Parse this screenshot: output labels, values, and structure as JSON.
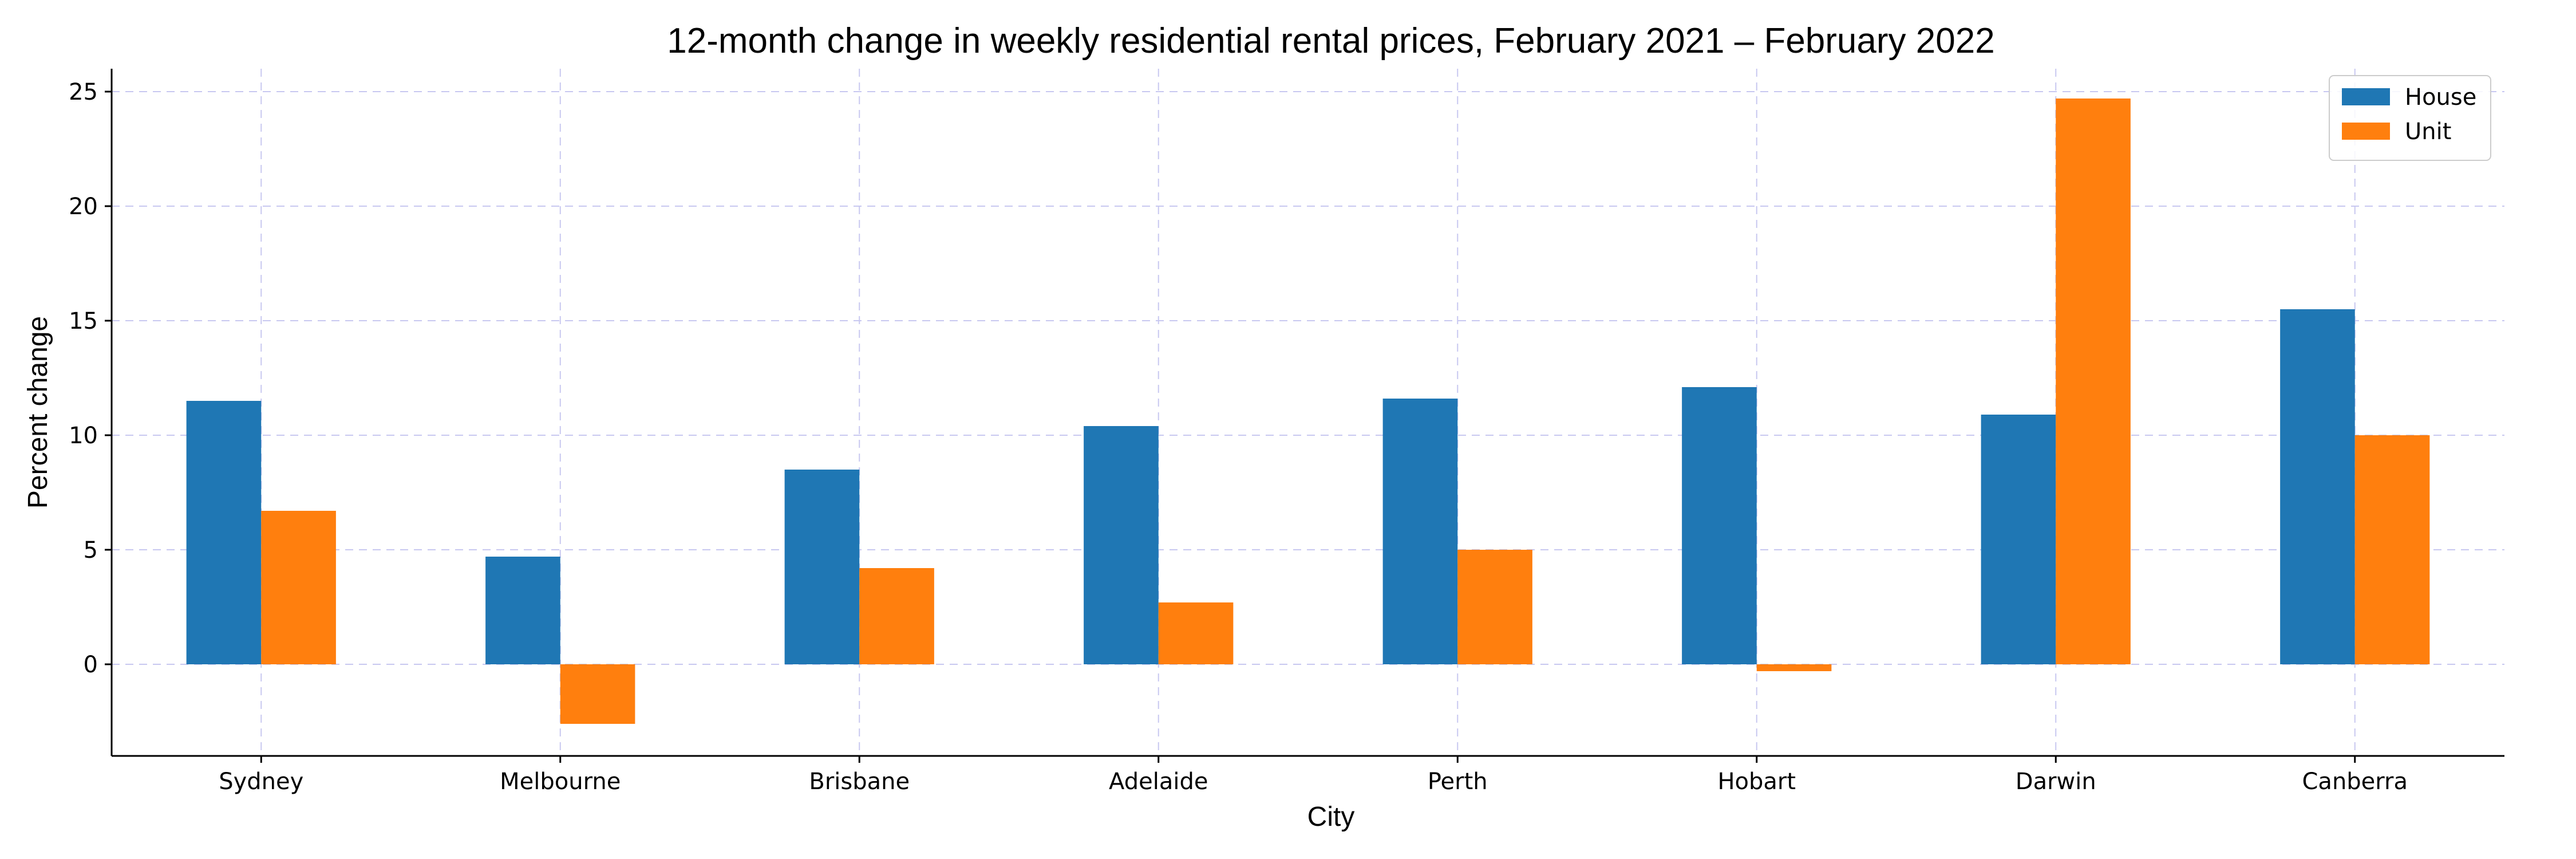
{
  "chart_data": {
    "type": "bar",
    "title": "12-month change in weekly residential rental prices, February 2021 – February 2022",
    "xlabel": "City",
    "ylabel": "Percent change",
    "categories": [
      "Sydney",
      "Melbourne",
      "Brisbane",
      "Adelaide",
      "Perth",
      "Hobart",
      "Darwin",
      "Canberra"
    ],
    "series": [
      {
        "name": "House",
        "color": "#1f77b4",
        "values": [
          11.5,
          4.7,
          8.5,
          10.4,
          11.6,
          12.1,
          10.9,
          15.5
        ]
      },
      {
        "name": "Unit",
        "color": "#ff7f0e",
        "values": [
          6.7,
          -2.6,
          4.2,
          2.7,
          5.0,
          -0.3,
          24.7,
          10.0
        ]
      }
    ],
    "ylim": [
      -4,
      26
    ],
    "yticks": [
      0,
      5,
      10,
      15,
      20,
      25
    ],
    "grid": true,
    "legend_position": "top-right"
  }
}
